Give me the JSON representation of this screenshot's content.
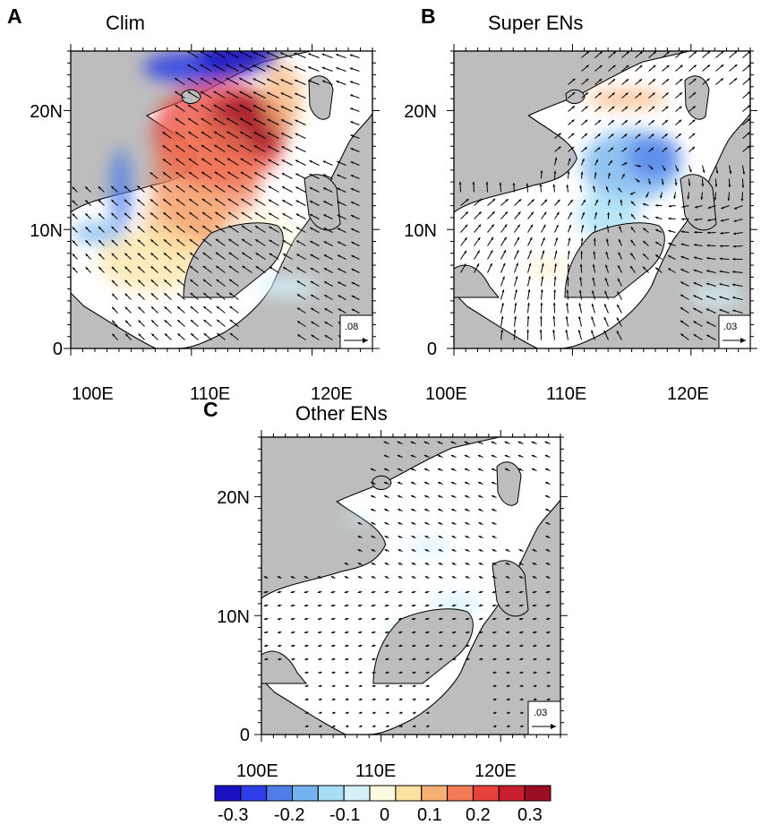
{
  "figure": {
    "panels": [
      {
        "id": "A",
        "letter": "A",
        "title": "Clim",
        "ref_vector": ".08",
        "x_ticks": [
          "100E",
          "110E",
          "120E"
        ],
        "y_ticks": [
          "20N",
          "10N",
          "0"
        ],
        "vector_scale": 1.0,
        "vector_density": 1.0,
        "field": "clim"
      },
      {
        "id": "B",
        "letter": "B",
        "title": "Super ENs",
        "ref_vector": ".03",
        "x_ticks": [
          "100E",
          "110E",
          "120E"
        ],
        "y_ticks": [
          "20N",
          "10N",
          "0"
        ],
        "vector_scale": 0.9,
        "vector_density": 1.0,
        "field": "super"
      },
      {
        "id": "C",
        "letter": "C",
        "title": "Other ENs",
        "ref_vector": ".03",
        "x_ticks": [
          "100E",
          "110E",
          "120E"
        ],
        "y_ticks": [
          "20N",
          "10N",
          "0"
        ],
        "vector_scale": 0.55,
        "vector_density": 1.0,
        "field": "other"
      }
    ],
    "colorbar": {
      "labels": [
        "-0.3",
        "-0.2",
        "-0.1",
        "0",
        "0.1",
        "0.2",
        "0.3"
      ],
      "colors": [
        "#1a0fc2",
        "#2e3ee8",
        "#4f7ee8",
        "#74b3ef",
        "#a8def5",
        "#d4f1fa",
        "#fffbe0",
        "#fbe2a0",
        "#f7b074",
        "#f27b55",
        "#e8413a",
        "#c81e2d",
        "#9b0e24"
      ]
    },
    "colors": {
      "land": "#bdbdbd",
      "ocean": "#ffffff",
      "vector": "#000000"
    }
  }
}
